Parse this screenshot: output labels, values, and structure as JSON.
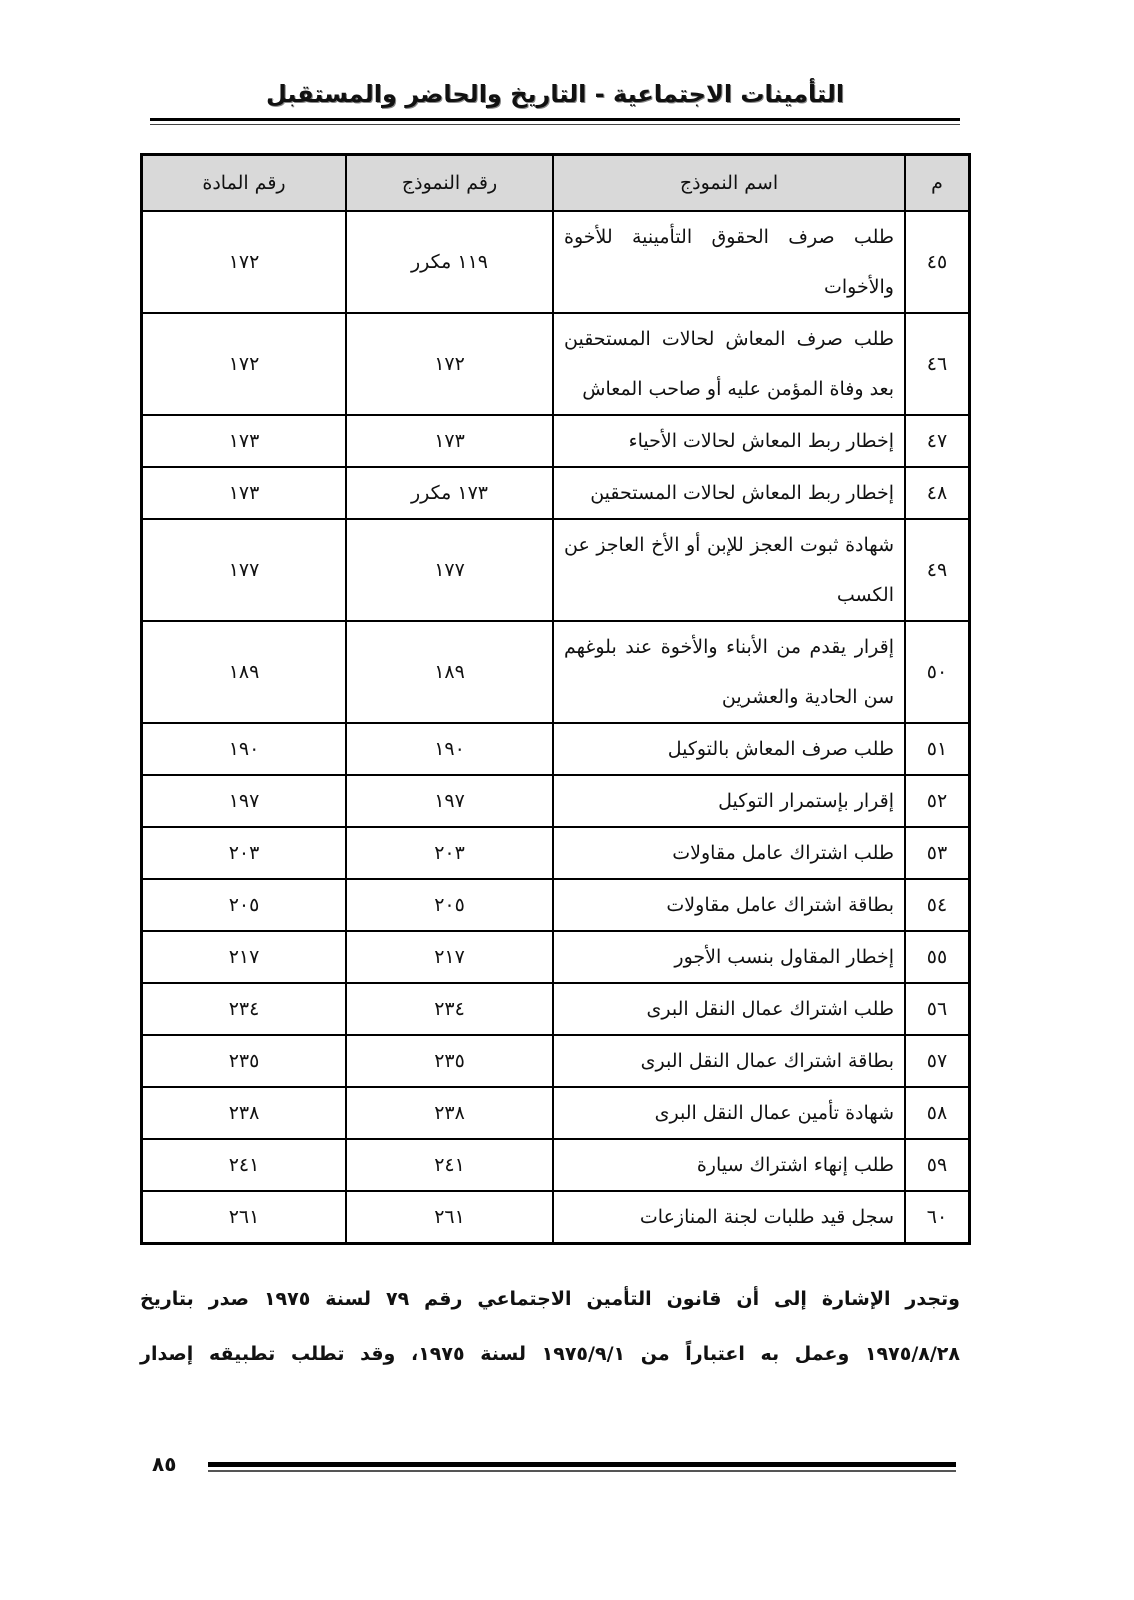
{
  "header": {
    "title": "التأمينات الاجتماعية - التاريخ والحاضر والمستقبل"
  },
  "table": {
    "columns": [
      "م",
      "اسم النموذج",
      "رقم النموذج",
      "رقم المادة"
    ],
    "rows": [
      {
        "m": "٤٥",
        "name": "طلب صرف الحقوق التأمينية للأخوة والأخوات",
        "form": "١١٩ مكرر",
        "article": "١٧٢",
        "two": true
      },
      {
        "m": "٤٦",
        "name": "طلب صرف المعاش لحالات المستحقين بعد وفاة المؤمن عليه أو صاحب المعاش",
        "form": "١٧٢",
        "article": "١٧٢",
        "two": true
      },
      {
        "m": "٤٧",
        "name": "إخطار ربط المعاش لحالات الأحياء",
        "form": "١٧٣",
        "article": "١٧٣"
      },
      {
        "m": "٤٨",
        "name": "إخطار ربط المعاش لحالات المستحقين",
        "form": "١٧٣ مكرر",
        "article": "١٧٣"
      },
      {
        "m": "٤٩",
        "name": "شهادة ثبوت العجز للإبن أو الأخ العاجز عن الكسب",
        "form": "١٧٧",
        "article": "١٧٧",
        "two": true
      },
      {
        "m": "٥٠",
        "name": "إقرار يقدم من الأبناء والأخوة عند بلوغهم سن الحادية والعشرين",
        "form": "١٨٩",
        "article": "١٨٩",
        "two": true
      },
      {
        "m": "٥١",
        "name": "طلب صرف المعاش بالتوكيل",
        "form": "١٩٠",
        "article": "١٩٠"
      },
      {
        "m": "٥٢",
        "name": "إقرار بإستمرار التوكيل",
        "form": "١٩٧",
        "article": "١٩٧"
      },
      {
        "m": "٥٣",
        "name": "طلب اشتراك عامل مقاولات",
        "form": "٢٠٣",
        "article": "٢٠٣"
      },
      {
        "m": "٥٤",
        "name": "بطاقة اشتراك عامل مقاولات",
        "form": "٢٠٥",
        "article": "٢٠٥"
      },
      {
        "m": "٥٥",
        "name": "إخطار المقاول بنسب الأجور",
        "form": "٢١٧",
        "article": "٢١٧"
      },
      {
        "m": "٥٦",
        "name": "طلب اشتراك عمال النقل البرى",
        "form": "٢٣٤",
        "article": "٢٣٤"
      },
      {
        "m": "٥٧",
        "name": "بطاقة اشتراك عمال النقل البرى",
        "form": "٢٣٥",
        "article": "٢٣٥"
      },
      {
        "m": "٥٨",
        "name": "شهادة تأمين عمال النقل البرى",
        "form": "٢٣٨",
        "article": "٢٣٨"
      },
      {
        "m": "٥٩",
        "name": "طلب إنهاء اشتراك سيارة",
        "form": "٢٤١",
        "article": "٢٤١"
      },
      {
        "m": "٦٠",
        "name": "سجل قيد طلبات لجنة المنازعات",
        "form": "٢٦١",
        "article": "٢٦١"
      }
    ]
  },
  "paragraph": {
    "line1": "وتجدر الإشارة إلى أن قانون التأمين الاجتماعي رقم ٧٩ لسنة ١٩٧٥ صدر بتاريخ",
    "line2": "١٩٧٥/٨/٢٨ وعمل به اعتباراً من ١٩٧٥/٩/١ لسنة ١٩٧٥، وقد تطلب تطبيقه إصدار"
  },
  "footer": {
    "page_number": "٨٥"
  }
}
